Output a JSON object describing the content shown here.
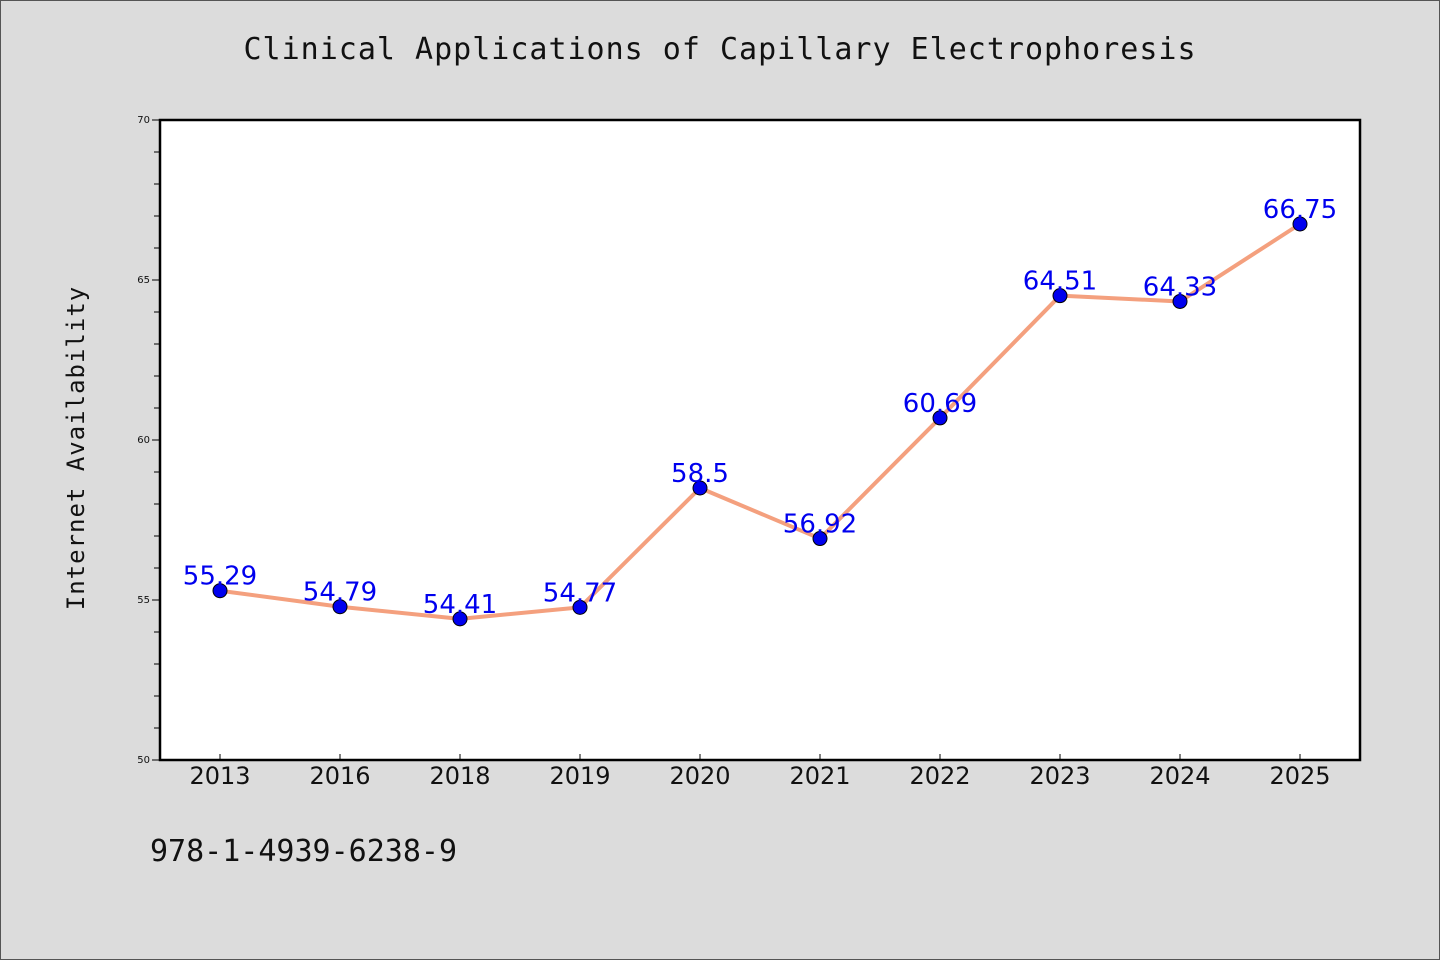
{
  "page": {
    "title": "Clinical Applications of Capillary Electrophoresis",
    "footer": "978-1-4939-6238-9"
  },
  "colors": {
    "background": "#dcdcdc",
    "plot_background": "#ffffff",
    "line": "#f4a07e",
    "marker": "#0000ee",
    "label": "#0000ee"
  },
  "chart_data": {
    "type": "line",
    "title": "Clinical Applications of Capillary Electrophoresis",
    "xlabel": "",
    "ylabel": "Internet Availability",
    "categories": [
      "2013",
      "2016",
      "2018",
      "2019",
      "2020",
      "2021",
      "2022",
      "2023",
      "2024",
      "2025"
    ],
    "series": [
      {
        "values": [
          55.29,
          54.79,
          54.41,
          54.77,
          58.5,
          56.92,
          60.69,
          64.51,
          64.33,
          66.75
        ]
      }
    ],
    "data_labels": [
      "55.29",
      "54.79",
      "54.41",
      "54.77",
      "58.5",
      "56.92",
      "60.69",
      "64.51",
      "64.33",
      "66.75"
    ],
    "ylim": [
      50,
      70
    ],
    "yticks": [
      50,
      55,
      60,
      65,
      70
    ],
    "grid": false,
    "legend": "none"
  }
}
